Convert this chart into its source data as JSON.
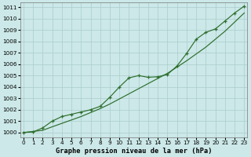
{
  "xlabel": "Graphe pression niveau de la mer (hPa)",
  "bg_color": "#cce8e8",
  "grid_color": "#aacccc",
  "line_color": "#2d6e2d",
  "ylim": [
    999.6,
    1011.4
  ],
  "xlim": [
    -0.3,
    23.3
  ],
  "yticks": [
    1000,
    1001,
    1002,
    1003,
    1004,
    1005,
    1006,
    1007,
    1008,
    1009,
    1010,
    1011
  ],
  "xticks": [
    0,
    1,
    2,
    3,
    4,
    5,
    6,
    7,
    8,
    9,
    10,
    11,
    12,
    13,
    14,
    15,
    16,
    17,
    18,
    19,
    20,
    21,
    22,
    23
  ],
  "x": [
    0,
    1,
    2,
    3,
    4,
    5,
    6,
    7,
    8,
    9,
    10,
    11,
    12,
    13,
    14,
    15,
    16,
    17,
    18,
    19,
    20,
    21,
    22,
    23
  ],
  "y_linear": [
    1000.0,
    1000.09,
    1000.19,
    1000.5,
    1000.8,
    1001.1,
    1001.4,
    1001.75,
    1002.1,
    1002.5,
    1002.95,
    1003.4,
    1003.85,
    1004.3,
    1004.75,
    1005.2,
    1005.75,
    1006.3,
    1006.9,
    1007.5,
    1008.2,
    1008.9,
    1009.7,
    1010.5
  ],
  "y_actual": [
    1000.0,
    1000.05,
    1000.4,
    1001.0,
    1001.4,
    1001.6,
    1001.8,
    1002.0,
    1002.3,
    1003.1,
    1004.0,
    1004.8,
    1005.0,
    1004.85,
    1004.9,
    1005.1,
    1005.85,
    1006.95,
    1008.2,
    1008.8,
    1009.1,
    1009.8,
    1010.5,
    1011.1
  ],
  "tick_fontsize": 5.2,
  "label_fontsize": 6.2
}
